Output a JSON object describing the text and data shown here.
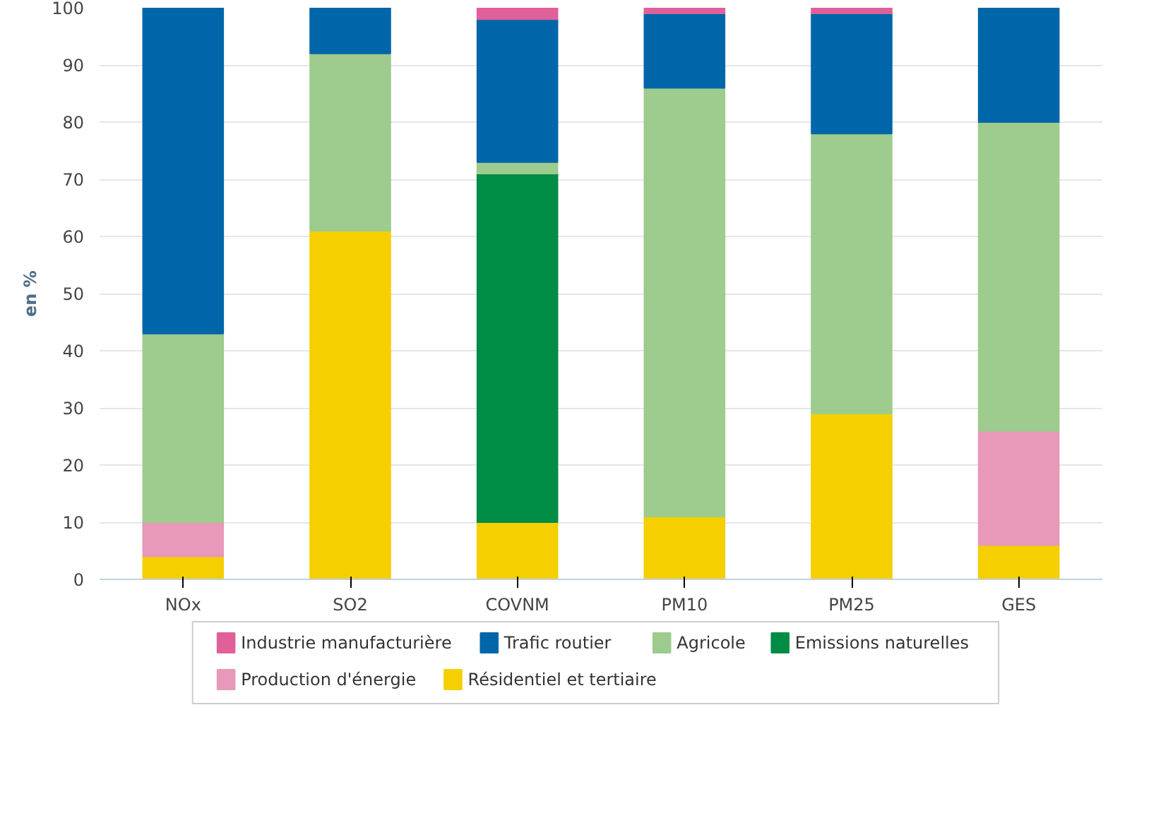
{
  "chart_data": {
    "type": "bar",
    "stacked": true,
    "ylabel": "en %",
    "categories": [
      "NOx",
      "SO2",
      "COVNM",
      "PM10",
      "PM25",
      "GES"
    ],
    "series": [
      {
        "name": "Résidentiel et tertiaire",
        "color": "#f5cf00",
        "values": [
          4,
          61,
          10,
          11,
          29,
          6
        ]
      },
      {
        "name": "Production d'énergie",
        "color": "#e898b8",
        "values": [
          6,
          null,
          null,
          null,
          null,
          20
        ]
      },
      {
        "name": "Emissions naturelles",
        "color": "#008c44",
        "values": [
          null,
          null,
          61,
          null,
          null,
          null
        ]
      },
      {
        "name": "Agricole",
        "color": "#9ecb8e",
        "values": [
          33,
          31,
          2,
          75,
          49,
          54
        ]
      },
      {
        "name": "Trafic routier",
        "color": "#0066aa",
        "values": [
          57,
          8,
          25,
          13,
          21,
          20
        ]
      },
      {
        "name": "Industrie manufacturière",
        "color": "#e0609a",
        "values": [
          null,
          null,
          2,
          1,
          1,
          null
        ]
      }
    ],
    "ylim": [
      0,
      100
    ],
    "yticks": [
      0,
      10,
      20,
      30,
      40,
      50,
      60,
      70,
      80,
      90,
      100
    ],
    "grid": "y",
    "legend": "bottom"
  }
}
